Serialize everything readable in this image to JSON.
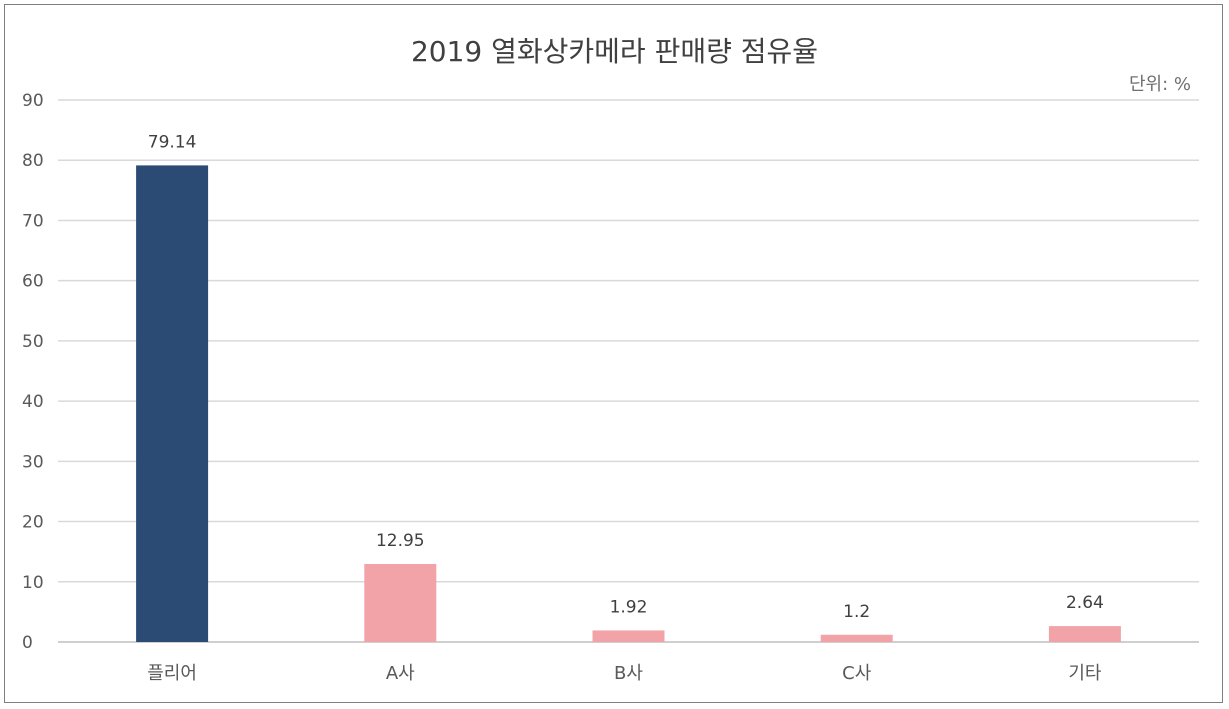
{
  "chart_data": {
    "type": "bar",
    "title": "2019 열화상카메라 판매량 점유율",
    "unit_note": "단위: %",
    "categories": [
      "플리어",
      "A사",
      "B사",
      "C사",
      "기타"
    ],
    "values": [
      79.14,
      12.95,
      1.92,
      1.2,
      2.64
    ],
    "value_labels": [
      "79.14",
      "12.95",
      "1.92",
      "1.2",
      "2.64"
    ],
    "bar_colors": [
      "#2b4a74",
      "#f2a3a7",
      "#f2a3a7",
      "#f2a3a7",
      "#f2a3a7"
    ],
    "ylim": [
      0,
      90
    ],
    "yticks": [
      0,
      10,
      20,
      30,
      40,
      50,
      60,
      70,
      80,
      90
    ],
    "grid": true,
    "legend": "none",
    "xlabel": "",
    "ylabel": ""
  }
}
